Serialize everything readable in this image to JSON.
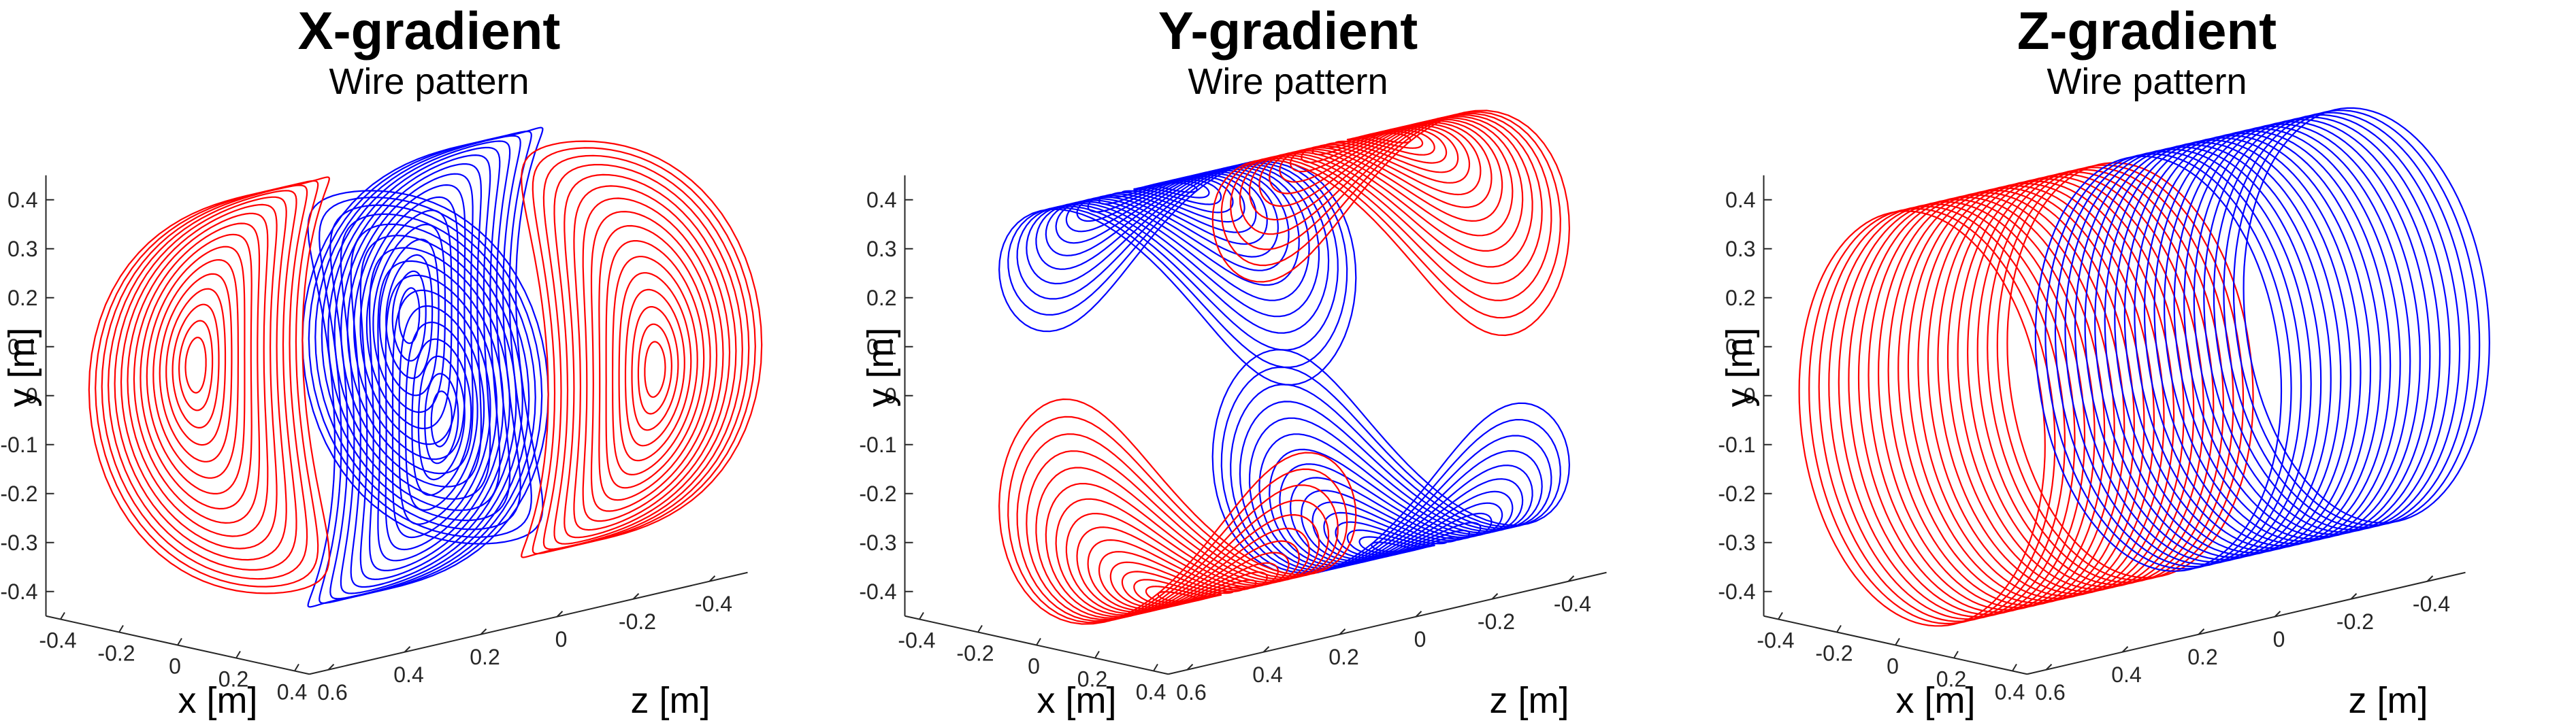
{
  "chart_data": [
    {
      "type": "line",
      "title": "X-gradient",
      "subtitle": "Wire pattern",
      "xlabel": "x [m]",
      "ylabel": "y [m]",
      "zlabel": "z [m]",
      "xlim": [
        -0.45,
        0.45
      ],
      "ylim": [
        -0.45,
        0.45
      ],
      "zlim": [
        -0.5,
        0.65
      ],
      "x_ticks": [
        "-0.4",
        "-0.2",
        "0",
        "0.2",
        "0.4"
      ],
      "y_ticks": [
        "0.4",
        "0.3",
        "0.2",
        "0.1",
        "0",
        "-0.1",
        "-0.2",
        "-0.3",
        "-0.4"
      ],
      "z_ticks": [
        "0.6",
        "0.4",
        "0.2",
        "0",
        "-0.2",
        "-0.4"
      ],
      "pattern": "saddle",
      "series": [
        {
          "color": "#0000ff"
        },
        {
          "color": "#ff0000"
        }
      ]
    },
    {
      "type": "line",
      "title": "Y-gradient",
      "subtitle": "Wire pattern",
      "xlabel": "x [m]",
      "ylabel": "y [m]",
      "zlabel": "z [m]",
      "xlim": [
        -0.45,
        0.45
      ],
      "ylim": [
        -0.45,
        0.45
      ],
      "zlim": [
        -0.5,
        0.65
      ],
      "x_ticks": [
        "-0.4",
        "-0.2",
        "0",
        "0.2",
        "0.4"
      ],
      "y_ticks": [
        "0.4",
        "0.3",
        "0.2",
        "0.1",
        "0",
        "-0.1",
        "-0.2",
        "-0.3",
        "-0.4"
      ],
      "z_ticks": [
        "0.6",
        "0.4",
        "0.2",
        "0",
        "-0.2",
        "-0.4"
      ],
      "pattern": "saddle-top-bottom",
      "series": [
        {
          "color": "#0000ff"
        },
        {
          "color": "#ff0000"
        }
      ]
    },
    {
      "type": "line",
      "title": "Z-gradient",
      "subtitle": "Wire pattern",
      "xlabel": "x [m]",
      "ylabel": "y [m]",
      "zlabel": "z [m]",
      "xlim": [
        -0.45,
        0.45
      ],
      "ylim": [
        -0.45,
        0.45
      ],
      "zlim": [
        -0.5,
        0.65
      ],
      "x_ticks": [
        "-0.4",
        "-0.2",
        "0",
        "0.2",
        "0.4"
      ],
      "y_ticks": [
        "0.4",
        "0.3",
        "0.2",
        "0.1",
        "0",
        "-0.1",
        "-0.2",
        "-0.3",
        "-0.4"
      ],
      "z_ticks": [
        "0.6",
        "0.4",
        "0.2",
        "0",
        "-0.2",
        "-0.4"
      ],
      "pattern": "loops",
      "series": [
        {
          "color": "#ff0000"
        },
        {
          "color": "#0000ff"
        }
      ]
    }
  ]
}
